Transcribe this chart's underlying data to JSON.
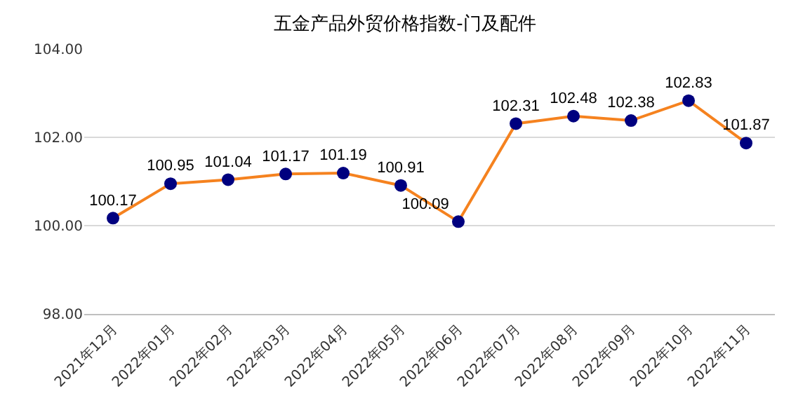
{
  "chart_data": {
    "type": "line",
    "title": "五金产品外贸价格指数-门及配件",
    "categories": [
      "2021年12月",
      "2022年01月",
      "2022年02月",
      "2022年03月",
      "2022年04月",
      "2022年05月",
      "2022年06月",
      "2022年07月",
      "2022年08月",
      "2022年09月",
      "2022年10月",
      "2022年11月"
    ],
    "series": [
      {
        "color": "#f5821f",
        "colors": [
          "#00007f",
          "#00007f",
          "#00007f",
          "#00007f",
          "#00007f",
          "#00007f",
          "#00007f",
          "#00007f",
          "#00007f",
          "#00007f",
          "#00007f",
          "#00007f"
        ],
        "values": [
          100.17,
          100.95,
          101.04,
          101.17,
          101.19,
          100.91,
          100.09,
          102.31,
          102.48,
          102.38,
          102.83,
          101.87
        ]
      }
    ],
    "ylim": [
      98,
      104
    ],
    "yticks": [
      {
        "value": 98,
        "label": "98.00"
      },
      {
        "value": 100,
        "label": "100.00"
      },
      {
        "value": 102,
        "label": "102.00"
      },
      {
        "value": 104,
        "label": "104.00"
      }
    ],
    "grid": "y",
    "marker": "circle",
    "line_style": "solid",
    "data_labels": true
  }
}
